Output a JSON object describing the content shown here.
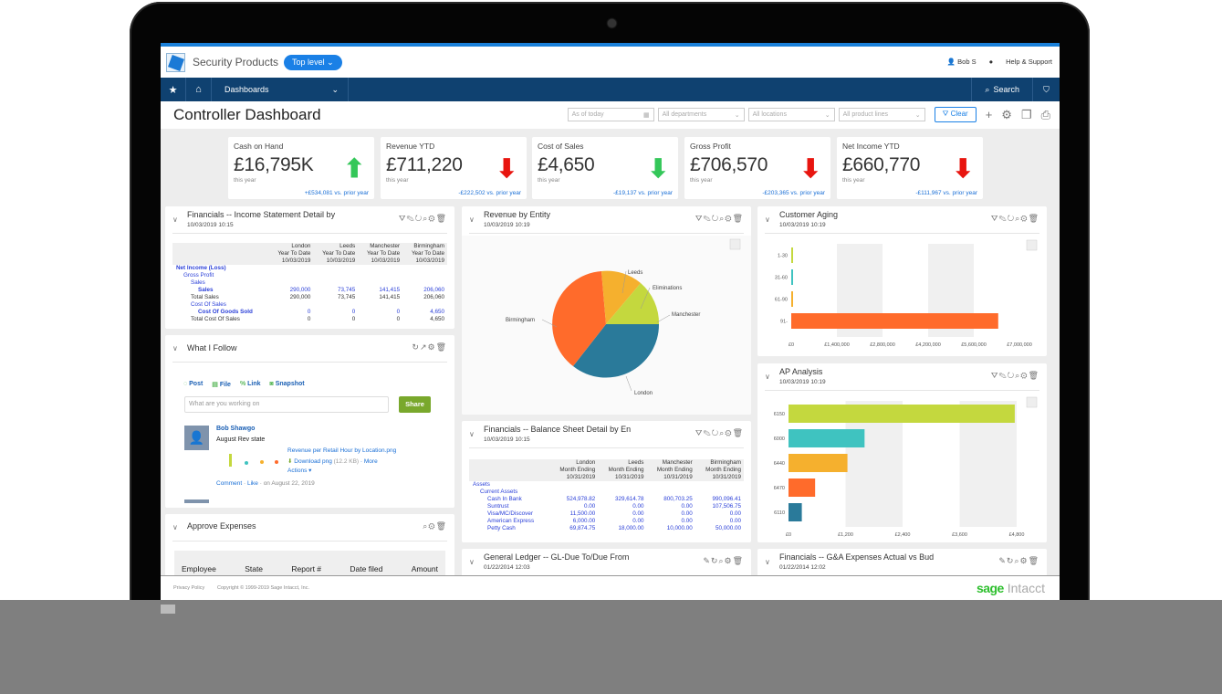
{
  "app": {
    "company": "Security Products",
    "level_pill": "Top level ⌄",
    "user": "Bob S",
    "help": "Help & Support"
  },
  "nav": {
    "star_icon": "★",
    "home_icon": "⌂",
    "dashboards": "Dashboards",
    "dash_chevron": "⌄",
    "search_label": "Search",
    "bookmark_icon": "⛉"
  },
  "page": {
    "title": "Controller Dashboard"
  },
  "filters": {
    "date": "As of today",
    "departments": "All departments",
    "locations": "All locations",
    "product_lines": "All product lines",
    "clear": "Clear",
    "add": "+",
    "gear": "⚙",
    "copy": "❐",
    "print": "⎙"
  },
  "kpis": [
    {
      "label": "Cash on Hand",
      "value": "£16,795K",
      "sub": "this year",
      "delta": "+£534,081 vs. prior year",
      "arrow": "up",
      "color": "#34c759"
    },
    {
      "label": "Revenue YTD",
      "value": "£711,220",
      "sub": "this year",
      "delta": "-£222,502 vs. prior year",
      "arrow": "down",
      "color": "#e8150f"
    },
    {
      "label": "Cost of Sales",
      "value": "£4,650",
      "sub": "this year",
      "delta": "-£19,137 vs. prior year",
      "arrow": "down",
      "color": "#34c759"
    },
    {
      "label": "Gross Profit",
      "value": "£706,570",
      "sub": "this year",
      "delta": "-£203,365 vs. prior year",
      "arrow": "down",
      "color": "#e8150f"
    },
    {
      "label": "Net Income YTD",
      "value": "£660,770",
      "sub": "this year",
      "delta": "-£111,967 vs. prior year",
      "arrow": "down",
      "color": "#e8150f"
    }
  ],
  "income": {
    "title": "Financials -- Income Statement Detail by",
    "date": "10/03/2019 10:15",
    "columns": [
      [
        "London",
        "Year To Date",
        "10/03/2019"
      ],
      [
        "Leeds",
        "Year To Date",
        "10/03/2019"
      ],
      [
        "Manchester",
        "Year To Date",
        "10/03/2019"
      ],
      [
        "Birmingham",
        "Year To Date",
        "10/03/2019"
      ]
    ],
    "rows": [
      {
        "label": "Net Income (Loss)",
        "indent": 0,
        "values": [
          "",
          "",
          "",
          ""
        ]
      },
      {
        "label": "Gross Profit",
        "indent": 1,
        "values": [
          "",
          "",
          "",
          ""
        ]
      },
      {
        "label": "Sales",
        "indent": 2,
        "values": [
          "",
          "",
          "",
          ""
        ]
      },
      {
        "label": "Sales",
        "indent": 3,
        "values": [
          "290,000",
          "73,745",
          "141,415",
          "206,060"
        ]
      },
      {
        "label": "Total Sales",
        "indent": 2,
        "values": [
          "290,000",
          "73,745",
          "141,415",
          "206,060"
        ],
        "black": true
      },
      {
        "label": "Cost Of Sales",
        "indent": 2,
        "values": [
          "",
          "",
          "",
          ""
        ]
      },
      {
        "label": "Cost Of Goods Sold",
        "indent": 3,
        "values": [
          "0",
          "0",
          "0",
          "4,650"
        ]
      },
      {
        "label": "Total Cost Of Sales",
        "indent": 2,
        "values": [
          "0",
          "0",
          "0",
          "4,650"
        ],
        "black": true
      }
    ]
  },
  "follow": {
    "title": "What I Follow",
    "tabs": [
      "Post",
      "File",
      "Link",
      "Snapshot"
    ],
    "placeholder": "What are you working on",
    "share": "Share",
    "post": {
      "author": "Bob Shawgo",
      "text": "August Rev state",
      "file": "Revenue per Retail Hour by Location.png",
      "download": "Download png",
      "size": "(12.2 KB)",
      "more": "More",
      "actions": "Actions ▾",
      "comment": "Comment",
      "like": "Like",
      "date": "on August 22, 2019"
    }
  },
  "expenses": {
    "title": "Approve Expenses",
    "columns": [
      "Employee",
      "State",
      "Report #",
      "Date filed",
      "Amount"
    ]
  },
  "revenue_entity": {
    "title": "Revenue by Entity",
    "date": "10/03/2019 10:19"
  },
  "balance": {
    "title": "Financials -- Balance Sheet Detail by En",
    "date": "10/03/2019 10:15",
    "columns": [
      [
        "London",
        "Month Ending",
        "10/31/2019"
      ],
      [
        "Leeds",
        "Month Ending",
        "10/31/2019"
      ],
      [
        "Manchester",
        "Month Ending",
        "10/31/2019"
      ],
      [
        "Birmingham",
        "Month Ending",
        "10/31/2019"
      ]
    ],
    "rows": [
      {
        "label": "Assets",
        "indent": 0,
        "values": [
          "",
          "",
          "",
          ""
        ]
      },
      {
        "label": "Current Assets",
        "indent": 1,
        "values": [
          "",
          "",
          "",
          ""
        ]
      },
      {
        "label": "Cash In Bank",
        "indent": 2,
        "values": [
          "524,978.82",
          "329,614.78",
          "800,703.25",
          "990,096.41"
        ]
      },
      {
        "label": "Suntrust",
        "indent": 2,
        "values": [
          "0.00",
          "0.00",
          "0.00",
          "107,506.75"
        ]
      },
      {
        "label": "Visa/MC/Discover",
        "indent": 2,
        "values": [
          "11,500.00",
          "0.00",
          "0.00",
          "0.00"
        ]
      },
      {
        "label": "American Express",
        "indent": 2,
        "values": [
          "6,000.00",
          "0.00",
          "0.00",
          "0.00"
        ]
      },
      {
        "label": "Petty Cash",
        "indent": 2,
        "values": [
          "69,874.75",
          "18,000.00",
          "10,000.00",
          "50,000.00"
        ]
      }
    ]
  },
  "customer_aging": {
    "title": "Customer Aging",
    "date": "10/03/2019 10:19"
  },
  "ap": {
    "title": "AP Analysis",
    "date": "10/03/2019 10:19"
  },
  "gl": {
    "title": "General Ledger -- GL-Due To/Due From",
    "date": "01/22/2014 12:03"
  },
  "ga": {
    "title": "Financials -- G&A Expenses Actual vs Bud",
    "date": "01/22/2014 12:02"
  },
  "footer": {
    "privacy": "Privacy Policy",
    "copyright": "Copyright © 1999-2019 Sage Intacct, Inc.",
    "brand_sage": "sage",
    "brand_intacct": "Intacct"
  },
  "chart_data": [
    {
      "type": "pie",
      "title": "Revenue by Entity",
      "categories": [
        "London",
        "Birmingham",
        "Leeds",
        "Eliminations",
        "Manchester"
      ],
      "values": [
        290000,
        206060,
        73745,
        0,
        141415
      ],
      "colors": [
        "#2a7a9a",
        "#ff6b2b",
        "#f5b02e",
        "#f5b02e",
        "#c4d83e"
      ]
    },
    {
      "type": "bar",
      "orientation": "horizontal",
      "title": "Customer Aging",
      "categories": [
        "1-30",
        "31-60",
        "61-90",
        "91-"
      ],
      "values": [
        25000,
        25000,
        25000,
        6350000
      ],
      "colors": [
        "#c4d83e",
        "#3fc3c0",
        "#f5b02e",
        "#ff6b2b"
      ],
      "xticks": [
        "£0",
        "£1,400,000",
        "£2,800,000",
        "£4,200,000",
        "£5,600,000",
        "£7,000,000"
      ],
      "xlim": [
        0,
        7000000
      ]
    },
    {
      "type": "bar",
      "orientation": "horizontal",
      "title": "AP Analysis",
      "categories": [
        "6150",
        "6000",
        "6440",
        "6470",
        "6110"
      ],
      "values": [
        5950,
        2000,
        1550,
        700,
        350
      ],
      "colors": [
        "#c4d83e",
        "#3fc3c0",
        "#f5b02e",
        "#ff6b2b",
        "#2a7a9a"
      ],
      "xticks": [
        "£0",
        "£1,200",
        "£2,400",
        "£3,600",
        "£4,800"
      ],
      "xlim": [
        0,
        6000
      ]
    }
  ]
}
